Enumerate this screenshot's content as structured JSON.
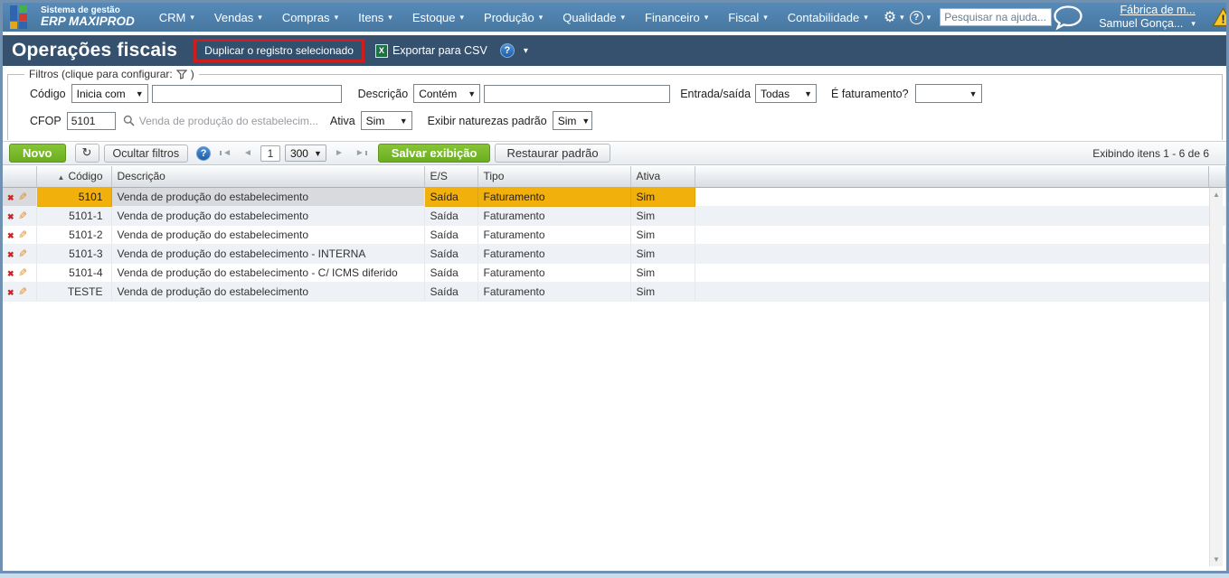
{
  "colors": {
    "topbar_blue": "#4e80b1",
    "titlebar_navy": "#35516d",
    "accent_green": "#76b82a",
    "selection_orange": "#f2b00d",
    "highlight_red": "#cf1d1d",
    "page_border_blue": "#7191b3"
  },
  "topbar": {
    "brand_line1": "Sistema de gestão",
    "brand_line2": "ERP MAXIPROD",
    "menus": [
      "CRM",
      "Vendas",
      "Compras",
      "Itens",
      "Estoque",
      "Produção",
      "Qualidade",
      "Financeiro",
      "Fiscal",
      "Contabilidade"
    ],
    "search_placeholder": "Pesquisar na ajuda...",
    "company": "Fábrica de m...",
    "user": "Samuel Gonça..."
  },
  "titlebar": {
    "title": "Operações fiscais",
    "duplicate_label": "Duplicar o registro selecionado",
    "excel_glyph": "X",
    "export_label": "Exportar para CSV",
    "help_glyph": "?"
  },
  "filters": {
    "legend": "Filtros (clique para configurar:",
    "legend_close": ")",
    "codigo_label": "Código",
    "codigo_operator": "Inicia com",
    "codigo_value": "",
    "descricao_label": "Descrição",
    "descricao_operator": "Contém",
    "descricao_value": "",
    "entrada_saida_label": "Entrada/saída",
    "entrada_saida_value": "Todas",
    "faturamento_label": "É faturamento?",
    "faturamento_value": "",
    "cfop_label": "CFOP",
    "cfop_value": "5101",
    "cfop_hint": "Venda de produção do estabelecim...",
    "ativa_label": "Ativa",
    "ativa_value": "Sim",
    "naturezas_label": "Exibir naturezas padrão",
    "naturezas_value": "Sim"
  },
  "toolbar": {
    "new_label": "Novo",
    "hide_filters_label": "Ocultar filtros",
    "help_glyph": "?",
    "page_value": "1",
    "page_size_value": "300",
    "save_view_label": "Salvar exibição",
    "restore_default_label": "Restaurar padrão",
    "status_text": "Exibindo itens 1 - 6 de 6"
  },
  "table": {
    "columns": [
      "Código",
      "Descrição",
      "E/S",
      "Tipo",
      "Ativa"
    ],
    "sort_column": "Código",
    "sort_direction": "asc",
    "rows": [
      {
        "codigo": "5101",
        "descricao": "Venda de produção do estabelecimento",
        "es": "Saída",
        "tipo": "Faturamento",
        "ativa": "Sim",
        "selected": true
      },
      {
        "codigo": "5101-1",
        "descricao": "Venda de produção do estabelecimento",
        "es": "Saída",
        "tipo": "Faturamento",
        "ativa": "Sim",
        "selected": false
      },
      {
        "codigo": "5101-2",
        "descricao": "Venda de produção do estabelecimento",
        "es": "Saída",
        "tipo": "Faturamento",
        "ativa": "Sim",
        "selected": false
      },
      {
        "codigo": "5101-3",
        "descricao": "Venda de produção do estabelecimento - INTERNA",
        "es": "Saída",
        "tipo": "Faturamento",
        "ativa": "Sim",
        "selected": false
      },
      {
        "codigo": "5101-4",
        "descricao": "Venda de produção do estabelecimento - C/ ICMS diferido",
        "es": "Saída",
        "tipo": "Faturamento",
        "ativa": "Sim",
        "selected": false
      },
      {
        "codigo": "TESTE",
        "descricao": "Venda de produção do estabelecimento",
        "es": "Saída",
        "tipo": "Faturamento",
        "ativa": "Sim",
        "selected": false
      }
    ]
  },
  "icons": {
    "delete": "✖",
    "edit": "✎",
    "refresh": "↻",
    "gear": "⚙",
    "sort_asc": "▲",
    "caret_down": "▾",
    "select_caret": "▼",
    "nav_prev": "◄",
    "nav_next": "►",
    "scroll_up": "▲",
    "scroll_down": "▼"
  }
}
